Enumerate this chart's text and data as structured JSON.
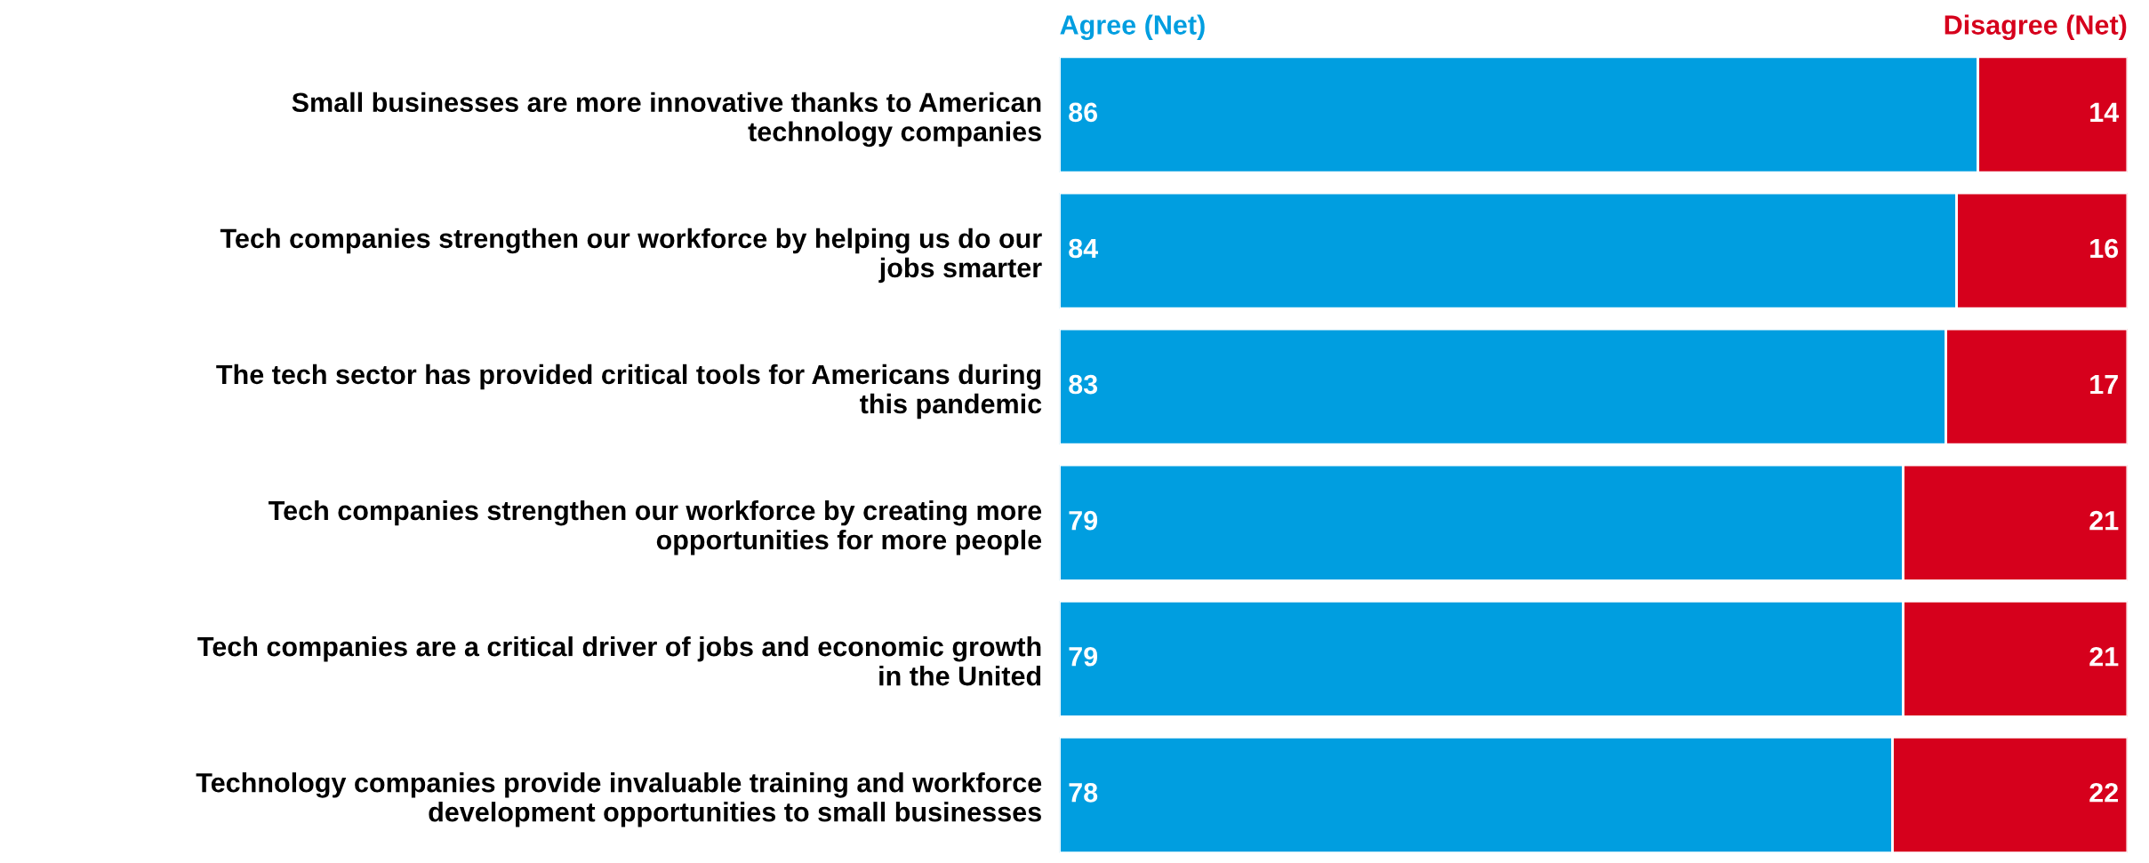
{
  "chart_data": {
    "type": "bar",
    "orientation": "horizontal",
    "stacked": true,
    "categories": [
      "Small businesses are more innovative thanks to American\ntechnology companies",
      "Tech companies strengthen our workforce by helping us do our\njobs smarter",
      "The tech sector has provided critical tools for Americans during\nthis pandemic",
      "Tech companies strengthen our workforce by creating more\nopportunities for more people",
      "Tech companies are a critical driver of jobs and economic growth\nin the United",
      "Technology companies provide invaluable training and workforce\ndevelopment opportunities to small businesses"
    ],
    "series": [
      {
        "name": "Agree (Net)",
        "color": "#009ee0",
        "values": [
          86,
          84,
          83,
          79,
          79,
          78
        ]
      },
      {
        "name": "Disagree (Net)",
        "color": "#d6001c",
        "values": [
          14,
          16,
          17,
          21,
          21,
          22
        ]
      }
    ],
    "xlim": [
      0,
      100
    ],
    "tick_labels": "y",
    "data_labels": true,
    "legend": "top",
    "grid": false
  }
}
